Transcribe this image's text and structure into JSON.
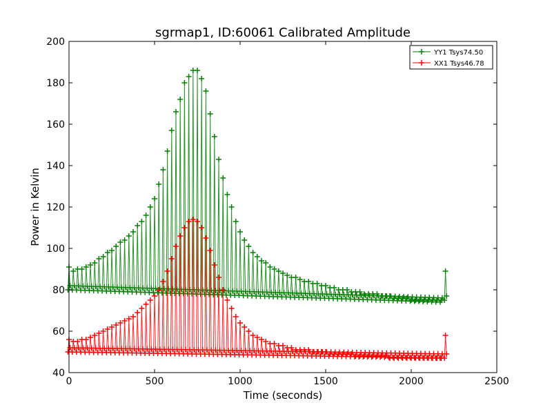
{
  "chart_data": {
    "type": "line",
    "title": "sgrmap1, ID:60061 Calibrated Amplitude",
    "xlabel": "Time (seconds)",
    "ylabel": "Power in Kelvin",
    "xlim": [
      0,
      2500
    ],
    "ylim": [
      40,
      200
    ],
    "xticks": [
      0,
      500,
      1000,
      1500,
      2000,
      2500
    ],
    "yticks": [
      40,
      60,
      80,
      100,
      120,
      140,
      160,
      180,
      200
    ],
    "legend_placement": "top-right",
    "grid": false,
    "series": [
      {
        "name": "YY1 Tsys74.50",
        "color": "#008000",
        "marker": "+",
        "x": [
          0,
          25,
          50,
          75,
          100,
          125,
          150,
          175,
          200,
          225,
          250,
          275,
          300,
          325,
          350,
          375,
          400,
          425,
          450,
          475,
          500,
          525,
          550,
          575,
          600,
          625,
          650,
          675,
          700,
          725,
          750,
          775,
          800,
          825,
          850,
          875,
          900,
          925,
          950,
          975,
          1000,
          1025,
          1050,
          1075,
          1100,
          1125,
          1150,
          1175,
          1200,
          1225,
          1250,
          1275,
          1300,
          1325,
          1350,
          1375,
          1400,
          1425,
          1450,
          1475,
          1500,
          1525,
          1550,
          1575,
          1600,
          1625,
          1650,
          1675,
          1700,
          1725,
          1750,
          1775,
          1800,
          1825,
          1850,
          1875,
          1900,
          1925,
          1950,
          1975,
          2000,
          2025,
          2050,
          2075,
          2100,
          2125,
          2150,
          2175,
          2200
        ],
        "y": [
          91,
          89,
          90,
          90,
          91,
          92,
          93,
          95,
          96,
          98,
          99,
          101,
          103,
          104,
          106,
          108,
          111,
          113,
          116,
          120,
          124,
          131,
          138,
          147,
          157,
          166,
          172,
          180,
          183,
          186,
          186,
          182,
          176,
          165,
          154,
          143,
          134,
          126,
          120,
          113,
          108,
          104,
          101,
          98,
          96,
          94,
          93,
          91,
          90,
          89,
          88,
          87,
          86,
          86,
          85,
          84,
          84,
          83,
          83,
          82,
          82,
          81,
          81,
          80,
          80,
          80,
          79,
          79,
          79,
          78,
          78,
          78,
          78,
          77,
          77,
          77,
          76,
          76,
          76,
          76,
          75,
          75,
          75,
          75,
          75,
          75,
          75,
          75,
          89
        ]
      },
      {
        "name": "XX1 Tsys46.78",
        "color": "#ff0000",
        "marker": "+",
        "x": [
          0,
          25,
          50,
          75,
          100,
          125,
          150,
          175,
          200,
          225,
          250,
          275,
          300,
          325,
          350,
          375,
          400,
          425,
          450,
          475,
          500,
          525,
          550,
          575,
          600,
          625,
          650,
          675,
          700,
          725,
          750,
          775,
          800,
          825,
          850,
          875,
          900,
          925,
          950,
          975,
          1000,
          1025,
          1050,
          1075,
          1100,
          1125,
          1150,
          1175,
          1200,
          1225,
          1250,
          1275,
          1300,
          1325,
          1350,
          1375,
          1400,
          1425,
          1450,
          1475,
          1500,
          1525,
          1550,
          1575,
          1600,
          1625,
          1650,
          1675,
          1700,
          1725,
          1750,
          1775,
          1800,
          1825,
          1850,
          1875,
          1900,
          1925,
          1950,
          1975,
          2000,
          2025,
          2050,
          2075,
          2100,
          2125,
          2150,
          2175,
          2200
        ],
        "y": [
          56,
          55,
          55,
          56,
          56,
          57,
          58,
          59,
          60,
          61,
          62,
          63,
          64,
          65,
          66,
          67,
          69,
          71,
          73,
          75,
          77,
          80,
          84,
          89,
          95,
          101,
          106,
          110,
          113,
          114,
          113,
          110,
          105,
          99,
          92,
          86,
          80,
          75,
          71,
          67,
          64,
          62,
          60,
          58,
          57,
          56,
          55,
          54,
          54,
          53,
          53,
          52,
          52,
          51,
          51,
          51,
          51,
          50,
          50,
          50,
          50,
          49,
          49,
          49,
          49,
          49,
          49,
          48,
          48,
          48,
          48,
          48,
          48,
          48,
          48,
          47,
          47,
          47,
          47,
          47,
          47,
          47,
          47,
          47,
          47,
          47,
          47,
          47,
          58
        ]
      }
    ]
  }
}
